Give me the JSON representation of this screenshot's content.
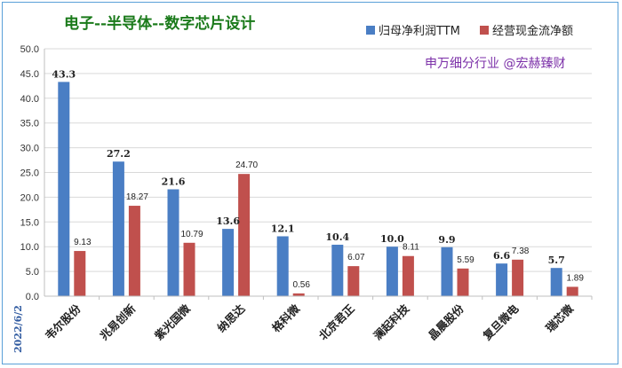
{
  "header": {
    "title": "电子--半导体--数字芯片设计",
    "source": "申万细分行业 @宏赫臻财",
    "date": "2022/6/2"
  },
  "colors": {
    "series_a": "#4a7ec4",
    "series_b": "#c0504d",
    "grid": "#d9d9d9"
  },
  "chart_data": {
    "type": "bar",
    "title": "电子--半导体--数字芯片设计",
    "xlabel": "",
    "ylabel": "",
    "ylim": [
      0,
      50
    ],
    "yticks": [
      "0.0",
      "5.0",
      "10.0",
      "15.0",
      "20.0",
      "25.0",
      "30.0",
      "35.0",
      "40.0",
      "45.0",
      "50.0"
    ],
    "grid": "horizontal",
    "legend_position": "top-right",
    "categories": [
      "韦尔股份",
      "兆易创新",
      "紫光国微",
      "纳思达",
      "格科微",
      "北京君正",
      "澜起科技",
      "晶晨股份",
      "复旦微电",
      "瑞芯微"
    ],
    "series": [
      {
        "name": "归母净利润TTM",
        "values": [
          43.3,
          27.2,
          21.6,
          13.6,
          12.1,
          10.4,
          10.0,
          9.9,
          6.6,
          5.7
        ],
        "labels": [
          "43.3",
          "27.2",
          "21.6",
          "13.6",
          "12.1",
          "10.4",
          "10.0",
          "9.9",
          "6.6",
          "5.7"
        ]
      },
      {
        "name": "经营现金流净额",
        "values": [
          9.13,
          18.27,
          10.79,
          24.7,
          0.56,
          6.07,
          8.11,
          5.59,
          7.38,
          1.89
        ],
        "labels": [
          "9.13",
          "18.27",
          "10.79",
          "24.70",
          "0.56",
          "6.07",
          "8.11",
          "5.59",
          "7.38",
          "1.89"
        ]
      }
    ]
  }
}
